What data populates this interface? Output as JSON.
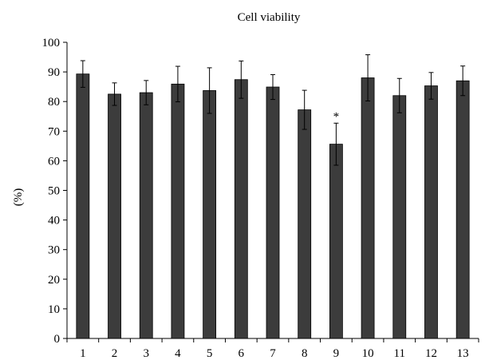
{
  "chart_data": {
    "type": "bar",
    "title": "Cell viability",
    "xlabel": "",
    "ylabel": "(%)",
    "ylim": [
      0,
      100
    ],
    "yticks": [
      0,
      10,
      20,
      30,
      40,
      50,
      60,
      70,
      80,
      90,
      100
    ],
    "categories": [
      "1",
      "2",
      "3",
      "4",
      "5",
      "6",
      "7",
      "8",
      "9",
      "10",
      "11",
      "12",
      "13"
    ],
    "values": [
      89.3,
      82.5,
      83.0,
      85.9,
      83.7,
      87.4,
      84.9,
      77.2,
      65.6,
      88.0,
      82.0,
      85.3,
      87.0
    ],
    "errors": [
      4.5,
      3.8,
      4.1,
      6.0,
      7.7,
      6.3,
      4.2,
      6.6,
      7.1,
      7.8,
      5.8,
      4.5,
      5.0
    ],
    "annotations": [
      {
        "category": "9",
        "text": "*"
      }
    ],
    "bar_color": "#3c3c3c",
    "grid": false,
    "legend": "none"
  }
}
